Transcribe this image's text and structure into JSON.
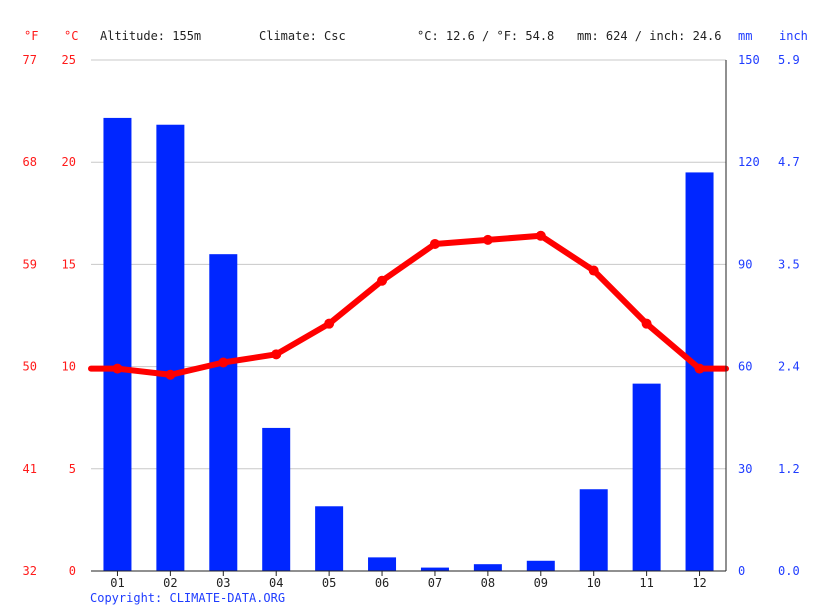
{
  "header": {
    "unit_f": "°F",
    "unit_c": "°C",
    "altitude": "Altitude: 155m",
    "climate": "Climate: Csc",
    "averages": "°C: 12.6 / °F: 54.8",
    "precip_totals": "mm: 624 / inch: 24.6",
    "unit_mm": "mm",
    "unit_inch": "inch"
  },
  "footer": {
    "copyright": "Copyright: CLIMATE-DATA.ORG"
  },
  "chart_data": {
    "type": "bar",
    "categories": [
      "01",
      "02",
      "03",
      "04",
      "05",
      "06",
      "07",
      "08",
      "09",
      "10",
      "11",
      "12"
    ],
    "series": [
      {
        "kind": "bar",
        "axis": "right",
        "unit": "mm",
        "color": "#0026ff",
        "values": [
          133,
          131,
          93,
          42,
          19,
          4,
          1,
          2,
          3,
          24,
          55,
          117
        ]
      },
      {
        "kind": "line",
        "axis": "left",
        "unit": "°C",
        "color": "#ff0000",
        "values": [
          9.9,
          9.6,
          10.2,
          10.6,
          12.1,
          14.2,
          16.0,
          16.2,
          16.4,
          14.7,
          12.1,
          9.9
        ]
      }
    ],
    "y_left_c": {
      "ticks": [
        "0",
        "5",
        "10",
        "15",
        "20",
        "25"
      ],
      "ylim": [
        0,
        25
      ]
    },
    "y_left_f": {
      "ticks": [
        "32",
        "41",
        "50",
        "59",
        "68",
        "77"
      ]
    },
    "y_right_mm": {
      "ticks": [
        "0",
        "30",
        "60",
        "90",
        "120",
        "150"
      ],
      "ylim": [
        0,
        150
      ]
    },
    "y_right_inch": {
      "ticks": [
        "0.0",
        "1.2",
        "2.4",
        "3.5",
        "4.7",
        "5.9"
      ]
    },
    "grid": true,
    "legend": "none"
  }
}
